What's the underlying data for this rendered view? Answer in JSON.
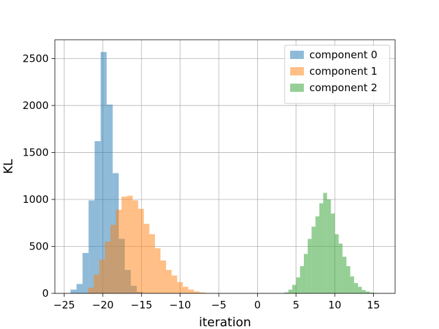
{
  "chart_data": {
    "type": "bar",
    "subtype": "histogram",
    "title": "",
    "xlabel": "iteration",
    "ylabel": "KL",
    "xlim": [
      -26.2,
      17.8
    ],
    "ylim": [
      0,
      2700
    ],
    "xticks": [
      -25,
      -20,
      -15,
      -10,
      -5,
      0,
      5,
      10,
      15
    ],
    "yticks": [
      0,
      500,
      1000,
      1500,
      2000,
      2500
    ],
    "grid": true,
    "legend_position": "top-right",
    "bar_opacity": 0.5,
    "series": [
      {
        "name": "component 0",
        "color": "#1f77b4",
        "bins": [
          {
            "x0": -24.18,
            "x1": -23.4,
            "count": 40
          },
          {
            "x0": -23.4,
            "x1": -22.62,
            "count": 100
          },
          {
            "x0": -22.62,
            "x1": -21.84,
            "count": 430
          },
          {
            "x0": -21.84,
            "x1": -21.06,
            "count": 990
          },
          {
            "x0": -21.06,
            "x1": -20.28,
            "count": 1620
          },
          {
            "x0": -20.28,
            "x1": -19.5,
            "count": 2570
          },
          {
            "x0": -19.5,
            "x1": -18.72,
            "count": 2010
          },
          {
            "x0": -18.72,
            "x1": -17.94,
            "count": 1280
          },
          {
            "x0": -17.94,
            "x1": -17.16,
            "count": 580
          },
          {
            "x0": -17.16,
            "x1": -16.38,
            "count": 250
          },
          {
            "x0": -16.38,
            "x1": -15.6,
            "count": 80
          },
          {
            "x0": -15.6,
            "x1": -14.82,
            "count": 15
          }
        ]
      },
      {
        "name": "component 1",
        "color": "#ff7f0e",
        "bins": [
          {
            "x0": -21.9,
            "x1": -21.18,
            "count": 60
          },
          {
            "x0": -21.18,
            "x1": -20.46,
            "count": 200
          },
          {
            "x0": -20.46,
            "x1": -19.74,
            "count": 360
          },
          {
            "x0": -19.74,
            "x1": -19.02,
            "count": 550
          },
          {
            "x0": -19.02,
            "x1": -18.3,
            "count": 730
          },
          {
            "x0": -18.3,
            "x1": -17.58,
            "count": 890
          },
          {
            "x0": -17.58,
            "x1": -16.86,
            "count": 1030
          },
          {
            "x0": -16.86,
            "x1": -16.14,
            "count": 1040
          },
          {
            "x0": -16.14,
            "x1": -15.42,
            "count": 990
          },
          {
            "x0": -15.42,
            "x1": -14.7,
            "count": 900
          },
          {
            "x0": -14.7,
            "x1": -13.98,
            "count": 740
          },
          {
            "x0": -13.98,
            "x1": -13.26,
            "count": 630
          },
          {
            "x0": -13.26,
            "x1": -12.54,
            "count": 480
          },
          {
            "x0": -12.54,
            "x1": -11.82,
            "count": 350
          },
          {
            "x0": -11.82,
            "x1": -11.1,
            "count": 250
          },
          {
            "x0": -11.1,
            "x1": -10.38,
            "count": 190
          },
          {
            "x0": -10.38,
            "x1": -9.66,
            "count": 120
          },
          {
            "x0": -9.66,
            "x1": -8.94,
            "count": 70
          },
          {
            "x0": -8.94,
            "x1": -8.22,
            "count": 40
          },
          {
            "x0": -8.22,
            "x1": -7.5,
            "count": 20
          },
          {
            "x0": -7.5,
            "x1": -6.78,
            "count": 10
          },
          {
            "x0": -6.78,
            "x1": -6.06,
            "count": 4
          },
          {
            "x0": -6.06,
            "x1": -5.34,
            "count": 2
          }
        ]
      },
      {
        "name": "component 2",
        "color": "#2ca02c",
        "bins": [
          {
            "x0": 3.5,
            "x1": 4.0,
            "count": 10
          },
          {
            "x0": 4.0,
            "x1": 4.5,
            "count": 40
          },
          {
            "x0": 4.5,
            "x1": 5.0,
            "count": 90
          },
          {
            "x0": 5.0,
            "x1": 5.5,
            "count": 170
          },
          {
            "x0": 5.5,
            "x1": 6.0,
            "count": 290
          },
          {
            "x0": 6.0,
            "x1": 6.5,
            "count": 420
          },
          {
            "x0": 6.5,
            "x1": 7.0,
            "count": 580
          },
          {
            "x0": 7.0,
            "x1": 7.5,
            "count": 710
          },
          {
            "x0": 7.5,
            "x1": 8.0,
            "count": 820
          },
          {
            "x0": 8.0,
            "x1": 8.5,
            "count": 960
          },
          {
            "x0": 8.5,
            "x1": 9.0,
            "count": 1070
          },
          {
            "x0": 9.0,
            "x1": 9.5,
            "count": 1000
          },
          {
            "x0": 9.5,
            "x1": 10.0,
            "count": 850
          },
          {
            "x0": 10.0,
            "x1": 10.5,
            "count": 630
          },
          {
            "x0": 10.5,
            "x1": 11.0,
            "count": 530
          },
          {
            "x0": 11.0,
            "x1": 11.5,
            "count": 390
          },
          {
            "x0": 11.5,
            "x1": 12.0,
            "count": 290
          },
          {
            "x0": 12.0,
            "x1": 12.5,
            "count": 180
          },
          {
            "x0": 12.5,
            "x1": 13.0,
            "count": 110
          },
          {
            "x0": 13.0,
            "x1": 13.5,
            "count": 70
          },
          {
            "x0": 13.5,
            "x1": 14.0,
            "count": 35
          },
          {
            "x0": 14.0,
            "x1": 14.5,
            "count": 20
          },
          {
            "x0": 14.5,
            "x1": 15.0,
            "count": 10
          },
          {
            "x0": 15.0,
            "x1": 15.5,
            "count": 5
          }
        ]
      }
    ]
  }
}
